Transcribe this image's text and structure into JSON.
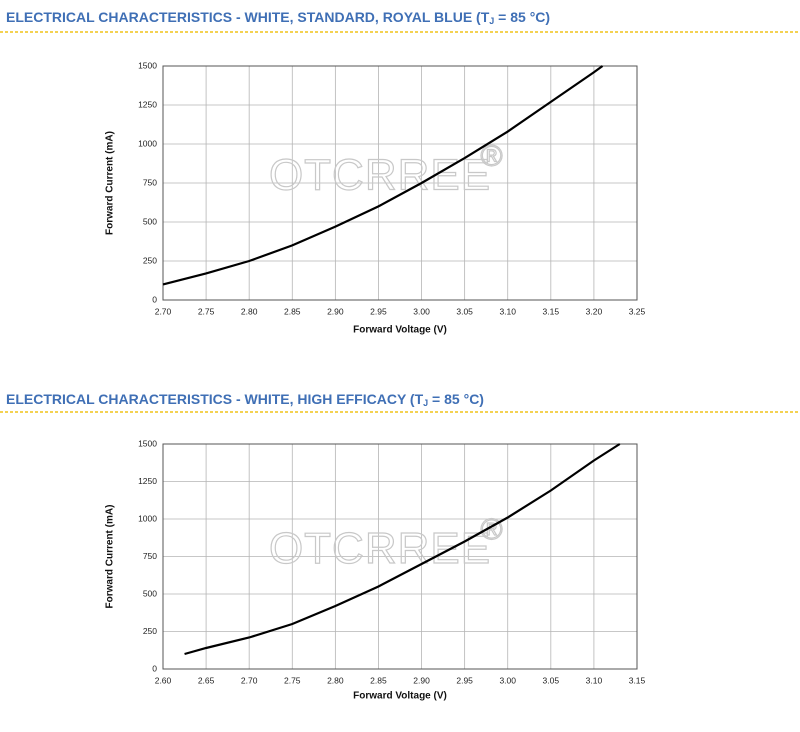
{
  "chart_data": [
    {
      "type": "line",
      "title": "ELECTRICAL CHARACTERISTICS - WHITE, STANDARD, ROYAL BLUE (T",
      "title_subscript": "J",
      "title_end": " = 85 °C)",
      "x_label": "Forward Voltage (V)",
      "y_label": "Forward Current (mA)",
      "watermark": "OTCRREE",
      "watermark_mark": "®",
      "x": [
        2.7,
        2.75,
        2.8,
        2.85,
        2.9,
        2.95,
        3.0,
        3.05,
        3.1,
        3.15,
        3.2,
        3.21
      ],
      "values": [
        100,
        170,
        250,
        350,
        470,
        600,
        750,
        910,
        1080,
        1270,
        1460,
        1500
      ],
      "color": "#000000",
      "grid": true,
      "xlim": [
        2.7,
        3.25
      ],
      "ylim": [
        0,
        1500
      ],
      "xticks": [
        {
          "value": 2.7,
          "label": "2.70"
        },
        {
          "value": 2.75,
          "label": "2.75"
        },
        {
          "value": 2.8,
          "label": "2.80"
        },
        {
          "value": 2.85,
          "label": "2.85"
        },
        {
          "value": 2.9,
          "label": "2.90"
        },
        {
          "value": 2.95,
          "label": "2.95"
        },
        {
          "value": 3.0,
          "label": "3.00"
        },
        {
          "value": 3.05,
          "label": "3.05"
        },
        {
          "value": 3.1,
          "label": "3.10"
        },
        {
          "value": 3.15,
          "label": "3.15"
        },
        {
          "value": 3.2,
          "label": "3.20"
        },
        {
          "value": 3.25,
          "label": "3.25"
        }
      ],
      "yticks": [
        0,
        250,
        500,
        750,
        1000,
        1250,
        1500
      ]
    },
    {
      "type": "line",
      "title": "ELECTRICAL CHARACTERISTICS - WHITE, HIGH EFFICACY (T",
      "title_subscript": "J",
      "title_end": " = 85 °C)",
      "x_label": "Forward Voltage (V)",
      "y_label": "Forward Current (mA)",
      "watermark": "OTCRREE",
      "watermark_mark": "®",
      "x": [
        2.625,
        2.65,
        2.7,
        2.75,
        2.8,
        2.85,
        2.9,
        2.95,
        3.0,
        3.05,
        3.1,
        3.13
      ],
      "values": [
        100,
        140,
        210,
        300,
        420,
        550,
        700,
        850,
        1010,
        1190,
        1390,
        1500
      ],
      "color": "#000000",
      "grid": true,
      "xlim": [
        2.6,
        3.15
      ],
      "ylim": [
        0,
        1500
      ],
      "xticks": [
        {
          "value": 2.6,
          "label": "2.60"
        },
        {
          "value": 2.65,
          "label": "2.65"
        },
        {
          "value": 2.7,
          "label": "2.70"
        },
        {
          "value": 2.75,
          "label": "2.75"
        },
        {
          "value": 2.8,
          "label": "2.80"
        },
        {
          "value": 2.85,
          "label": "2.85"
        },
        {
          "value": 2.9,
          "label": "2.90"
        },
        {
          "value": 2.95,
          "label": "2.95"
        },
        {
          "value": 3.0,
          "label": "3.00"
        },
        {
          "value": 3.05,
          "label": "3.05"
        },
        {
          "value": 3.1,
          "label": "3.10"
        },
        {
          "value": 3.15,
          "label": "3.15"
        }
      ],
      "yticks": [
        0,
        250,
        500,
        750,
        1000,
        1250,
        1500
      ]
    }
  ]
}
